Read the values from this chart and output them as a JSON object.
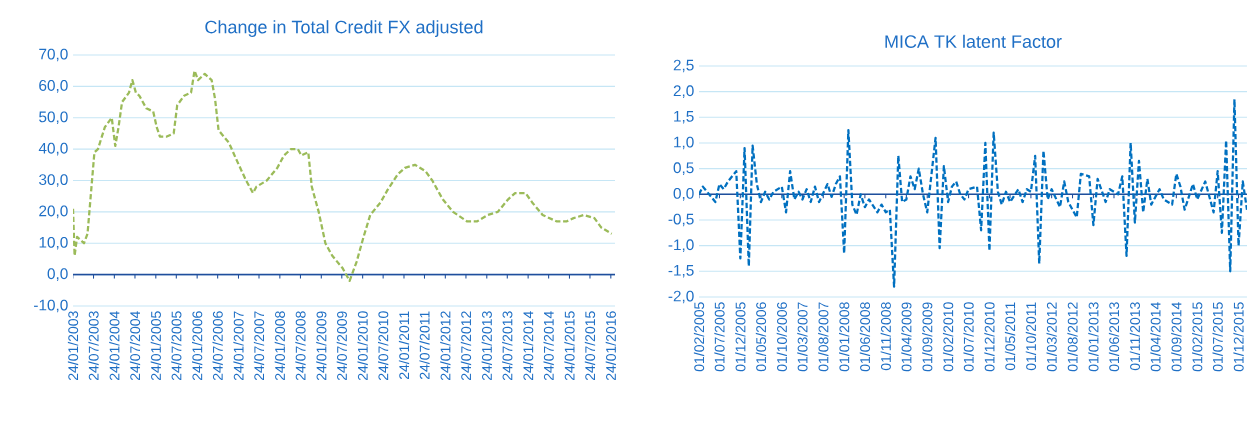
{
  "chart_data": [
    {
      "type": "line",
      "title": "Change in Total Credit FX adjusted",
      "ref_lines": [
        {
          "axis": "y",
          "value": 0,
          "color": "#1f4e9c"
        }
      ],
      "line_style": "dashed",
      "grid": "y",
      "marker": "none",
      "x": [
        "2003-01-24",
        "2003-02-07",
        "2003-03",
        "2003-05",
        "2003-06",
        "2003-08",
        "2003-09",
        "2003-11",
        "2004-01",
        "2004-02",
        "2004-03",
        "2004-04",
        "2004-06",
        "2004-07",
        "2004-08",
        "2004-09",
        "2004-11",
        "2005-01",
        "2005-02",
        "2005-03",
        "2005-05",
        "2005-07",
        "2005-08",
        "2005-10",
        "2005-12",
        "2006-01",
        "2006-02",
        "2006-04",
        "2006-06",
        "2006-07",
        "2006-08",
        "2006-11",
        "2007-01",
        "2007-04",
        "2007-06",
        "2007-07",
        "2007-10",
        "2008-01",
        "2008-03",
        "2008-05",
        "2008-07",
        "2008-08",
        "2008-10",
        "2008-11",
        "2009-01",
        "2009-03",
        "2009-05",
        "2009-08",
        "2009-10",
        "2009-12",
        "2010-02",
        "2010-04",
        "2010-07",
        "2010-09",
        "2010-12",
        "2011-02",
        "2011-05",
        "2011-08",
        "2011-10",
        "2012-01",
        "2012-04",
        "2012-08",
        "2012-11",
        "2013-02",
        "2013-05",
        "2013-08",
        "2013-10",
        "2014-01",
        "2014-03",
        "2014-06",
        "2014-10",
        "2015-01",
        "2015-03",
        "2015-06",
        "2015-09",
        "2015-11",
        "2016-02"
      ],
      "series": [
        {
          "color": "#9bbb59",
          "values": [
            21,
            6,
            12,
            10,
            13,
            39,
            40,
            47,
            50,
            41,
            47,
            55,
            58,
            62,
            58,
            57,
            53,
            52,
            47,
            44,
            44,
            45,
            54,
            57,
            58,
            65,
            62,
            64,
            62,
            56,
            46,
            42,
            37,
            30,
            26,
            28,
            30,
            34,
            38,
            40,
            40,
            38,
            39,
            28,
            20,
            10,
            6,
            2,
            -2,
            4,
            12,
            19,
            23,
            27,
            32,
            34,
            35,
            33,
            30,
            24,
            20,
            17,
            17,
            19,
            20,
            24,
            26,
            26,
            23,
            19,
            17,
            17,
            18,
            19,
            18,
            15,
            13
          ]
        }
      ],
      "xlim": [
        "2003-01-24",
        "2016-03-01"
      ],
      "xticks": [
        {
          "value": "2003-01-24",
          "label": "24/01/2003"
        },
        {
          "value": "2003-07-24",
          "label": "24/07/2003"
        },
        {
          "value": "2004-01-24",
          "label": "24/01/2004"
        },
        {
          "value": "2004-07-24",
          "label": "24/07/2004"
        },
        {
          "value": "2005-01-24",
          "label": "24/01/2005"
        },
        {
          "value": "2005-07-24",
          "label": "24/07/2005"
        },
        {
          "value": "2006-01-24",
          "label": "24/01/2006"
        },
        {
          "value": "2006-07-24",
          "label": "24/07/2006"
        },
        {
          "value": "2007-01-24",
          "label": "24/01/2007"
        },
        {
          "value": "2007-07-24",
          "label": "24/07/2007"
        },
        {
          "value": "2008-01-24",
          "label": "24/01/2008"
        },
        {
          "value": "2008-07-24",
          "label": "24/07/2008"
        },
        {
          "value": "2009-01-24",
          "label": "24/01/2009"
        },
        {
          "value": "2009-07-24",
          "label": "24/07/2009"
        },
        {
          "value": "2010-01-24",
          "label": "24/01/2010"
        },
        {
          "value": "2010-07-24",
          "label": "24/07/2010"
        },
        {
          "value": "2011-01-24",
          "label": "24/01/2011"
        },
        {
          "value": "2011-07-24",
          "label": "24/07/2011"
        },
        {
          "value": "2012-01-24",
          "label": "24/01/2012"
        },
        {
          "value": "2012-07-24",
          "label": "24/07/2012"
        },
        {
          "value": "2013-01-24",
          "label": "24/01/2013"
        },
        {
          "value": "2013-07-24",
          "label": "24/07/2013"
        },
        {
          "value": "2014-01-24",
          "label": "24/01/2014"
        },
        {
          "value": "2014-07-24",
          "label": "24/07/2014"
        },
        {
          "value": "2015-01-24",
          "label": "24/01/2015"
        },
        {
          "value": "2015-07-24",
          "label": "24/07/2015"
        },
        {
          "value": "2016-01-24",
          "label": "24/01/2016"
        }
      ],
      "ylim": [
        -10,
        70
      ],
      "yticks": [
        {
          "value": -10,
          "label": "-10,0"
        },
        {
          "value": 0,
          "label": "0,0"
        },
        {
          "value": 10,
          "label": "10,0"
        },
        {
          "value": 20,
          "label": "20,0"
        },
        {
          "value": 30,
          "label": "30,0"
        },
        {
          "value": 40,
          "label": "40,0"
        },
        {
          "value": 50,
          "label": "50,0"
        },
        {
          "value": 60,
          "label": "60,0"
        },
        {
          "value": 70,
          "label": "70,0"
        }
      ]
    },
    {
      "type": "line",
      "title": "MICA TK latent  Factor",
      "ref_lines": [
        {
          "axis": "y",
          "value": 0,
          "color": "#1f4e9c"
        }
      ],
      "line_style": "dashed",
      "grid": "y",
      "marker": "none",
      "x": [
        "2005-02",
        "2005-03",
        "2005-04",
        "2005-06",
        "2005-07",
        "2005-08",
        "2005-09",
        "2005-11",
        "2005-12",
        "2006-01",
        "2006-02",
        "2006-03",
        "2006-04",
        "2006-05",
        "2006-06",
        "2006-07",
        "2006-08",
        "2006-10",
        "2006-11",
        "2006-12",
        "2007-01",
        "2007-02",
        "2007-03",
        "2007-04",
        "2007-05",
        "2007-06",
        "2007-07",
        "2007-09",
        "2007-10",
        "2007-11",
        "2007-12",
        "2008-01",
        "2008-02",
        "2008-03",
        "2008-04",
        "2008-05",
        "2008-06",
        "2008-07",
        "2008-09",
        "2008-10",
        "2008-11",
        "2008-12",
        "2009-01",
        "2009-02",
        "2009-03",
        "2009-04",
        "2009-05",
        "2009-06",
        "2009-07",
        "2009-08",
        "2009-09",
        "2009-11",
        "2009-12",
        "2010-01",
        "2010-02",
        "2010-03",
        "2010-04",
        "2010-05",
        "2010-06",
        "2010-07",
        "2010-09",
        "2010-10",
        "2010-11",
        "2010-12",
        "2011-01",
        "2011-02",
        "2011-03",
        "2011-04",
        "2011-05",
        "2011-07",
        "2011-08",
        "2011-09",
        "2011-10",
        "2011-11",
        "2011-12",
        "2012-01",
        "2012-02",
        "2012-03",
        "2012-05",
        "2012-06",
        "2012-07",
        "2012-09",
        "2012-10",
        "2012-12",
        "2013-01",
        "2013-02",
        "2013-04",
        "2013-05",
        "2013-07",
        "2013-08",
        "2013-09",
        "2013-10",
        "2013-11",
        "2013-12",
        "2014-01",
        "2014-02",
        "2014-03",
        "2014-05",
        "2014-06",
        "2014-08",
        "2014-09",
        "2014-10",
        "2014-11",
        "2015-01",
        "2015-02",
        "2015-04",
        "2015-06",
        "2015-07",
        "2015-08",
        "2015-09",
        "2015-10",
        "2015-11",
        "2015-12",
        "2016-01",
        "2016-02"
      ],
      "series": [
        {
          "color": "#0070c0",
          "values": [
            0.0,
            0.15,
            0.05,
            -0.15,
            0.2,
            0.1,
            0.25,
            0.45,
            -1.25,
            0.9,
            -1.4,
            0.95,
            0.2,
            -0.15,
            0.05,
            -0.1,
            0.05,
            0.15,
            -0.35,
            0.45,
            -0.1,
            0.05,
            -0.1,
            0.1,
            -0.15,
            0.15,
            -0.15,
            0.2,
            -0.05,
            0.2,
            0.35,
            -1.15,
            1.25,
            -0.2,
            -0.4,
            0.0,
            -0.25,
            -0.1,
            -0.35,
            -0.2,
            -0.35,
            -0.3,
            -1.8,
            0.75,
            -0.15,
            -0.1,
            0.35,
            0.1,
            0.5,
            0.0,
            -0.35,
            1.1,
            -1.05,
            0.55,
            -0.15,
            0.15,
            0.25,
            0.0,
            -0.1,
            0.1,
            0.15,
            -0.7,
            1.0,
            -1.1,
            1.2,
            0.05,
            -0.2,
            0.05,
            -0.15,
            0.1,
            -0.15,
            0.1,
            0.05,
            0.75,
            -1.35,
            0.85,
            -0.1,
            0.1,
            -0.25,
            0.25,
            -0.15,
            -0.45,
            0.4,
            0.35,
            -0.6,
            0.3,
            -0.15,
            0.1,
            0.0,
            0.35,
            -1.2,
            1.0,
            -0.55,
            0.65,
            -0.35,
            0.3,
            -0.2,
            0.1,
            -0.1,
            -0.2,
            0.4,
            0.15,
            -0.3,
            0.2,
            -0.1,
            0.25,
            -0.35,
            0.45,
            -0.75,
            1.05,
            -1.5,
            1.85,
            -1.0,
            0.25,
            -0.3
          ]
        }
      ],
      "xlim": [
        "2005-02-01",
        "2016-02-01"
      ],
      "xticks": [
        {
          "value": "2005-02-01",
          "label": "01/02/2005"
        },
        {
          "value": "2005-07-01",
          "label": "01/07/2005"
        },
        {
          "value": "2005-12-01",
          "label": "01/12/2005"
        },
        {
          "value": "2006-05-01",
          "label": "01/05/2006"
        },
        {
          "value": "2006-10-01",
          "label": "01/10/2006"
        },
        {
          "value": "2007-03-01",
          "label": "01/03/2007"
        },
        {
          "value": "2007-08-01",
          "label": "01/08/2007"
        },
        {
          "value": "2008-01-01",
          "label": "01/01/2008"
        },
        {
          "value": "2008-06-01",
          "label": "01/06/2008"
        },
        {
          "value": "2008-11-01",
          "label": "01/11/2008"
        },
        {
          "value": "2009-04-01",
          "label": "01/04/2009"
        },
        {
          "value": "2009-09-01",
          "label": "01/09/2009"
        },
        {
          "value": "2010-02-01",
          "label": "01/02/2010"
        },
        {
          "value": "2010-07-01",
          "label": "01/07/2010"
        },
        {
          "value": "2010-12-01",
          "label": "01/12/2010"
        },
        {
          "value": "2011-05-01",
          "label": "01/05/2011"
        },
        {
          "value": "2011-10-01",
          "label": "01/10/2011"
        },
        {
          "value": "2012-03-01",
          "label": "01/03/2012"
        },
        {
          "value": "2012-08-01",
          "label": "01/08/2012"
        },
        {
          "value": "2013-01-01",
          "label": "01/01/2013"
        },
        {
          "value": "2013-06-01",
          "label": "01/06/2013"
        },
        {
          "value": "2013-11-01",
          "label": "01/11/2013"
        },
        {
          "value": "2014-04-01",
          "label": "01/04/2014"
        },
        {
          "value": "2014-09-01",
          "label": "01/09/2014"
        },
        {
          "value": "2015-02-01",
          "label": "01/02/2015"
        },
        {
          "value": "2015-07-01",
          "label": "01/07/2015"
        },
        {
          "value": "2015-12-01",
          "label": "01/12/2015"
        }
      ],
      "ylim": [
        -2,
        2.5
      ],
      "yticks": [
        {
          "value": -2,
          "label": "-2,0"
        },
        {
          "value": -1.5,
          "label": "-1,5"
        },
        {
          "value": -1,
          "label": "-1,0"
        },
        {
          "value": -0.5,
          "label": "-0,5"
        },
        {
          "value": 0,
          "label": "0,0"
        },
        {
          "value": 0.5,
          "label": "0,5"
        },
        {
          "value": 1,
          "label": "1,0"
        },
        {
          "value": 1.5,
          "label": "1,5"
        },
        {
          "value": 2,
          "label": "2,0"
        },
        {
          "value": 2.5,
          "label": "2,5"
        }
      ]
    }
  ]
}
